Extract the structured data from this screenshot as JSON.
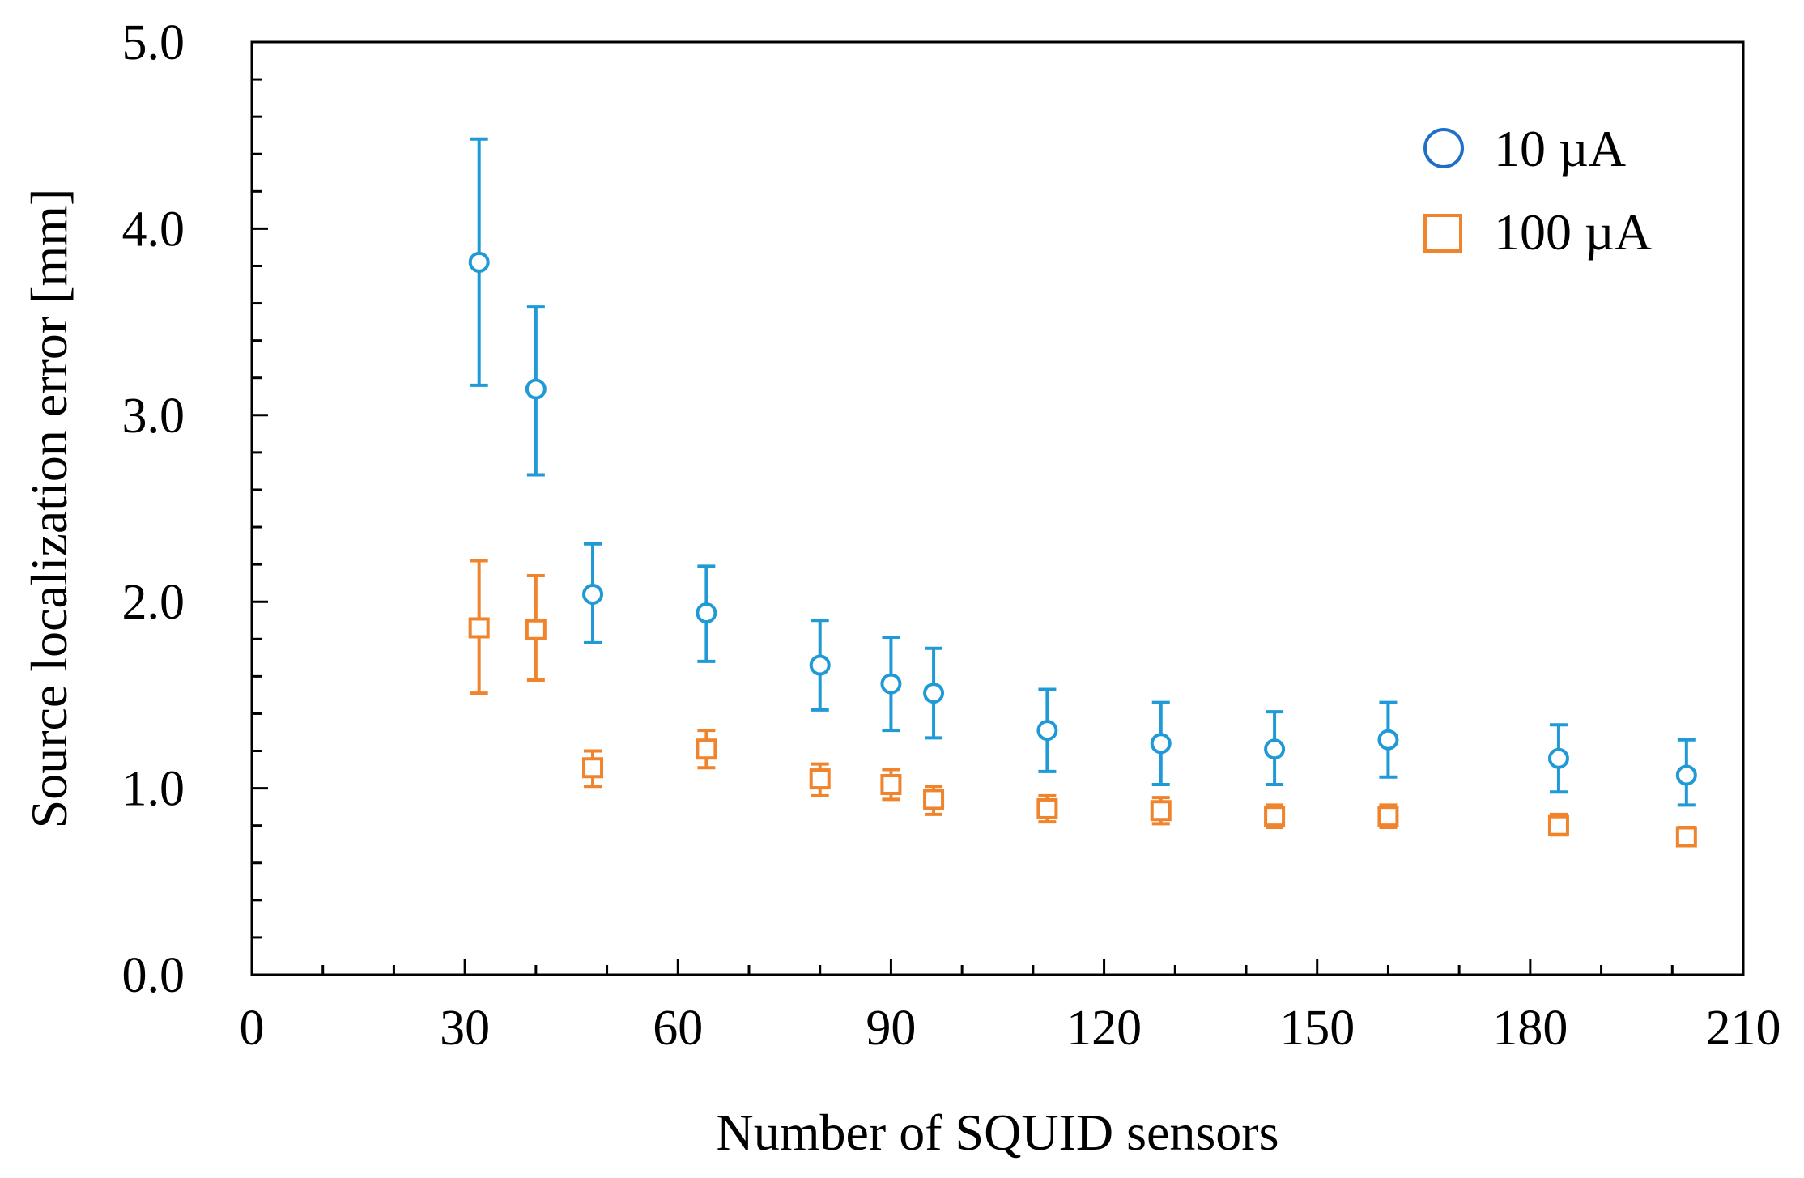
{
  "chart_data": {
    "type": "scatter",
    "title": "",
    "xlabel": "Number of SQUID sensors",
    "ylabel": "Source localization error [mm]",
    "xlim": [
      0,
      210
    ],
    "ylim": [
      0.0,
      5.0
    ],
    "x_ticks": [
      "0",
      "30",
      "60",
      "90",
      "120",
      "150",
      "180",
      "210"
    ],
    "y_ticks": [
      "0.0",
      "1.0",
      "2.0",
      "3.0",
      "4.0",
      "5.0"
    ],
    "legend_position": "top-right",
    "series": [
      {
        "name": "10 µA",
        "marker": "circle",
        "color": "#1f9ad6",
        "legend_color": "#1f6fc7",
        "points": [
          {
            "x": 32,
            "y": 3.82,
            "err_low": 3.16,
            "err_high": 4.48
          },
          {
            "x": 40,
            "y": 3.14,
            "err_low": 2.68,
            "err_high": 3.58
          },
          {
            "x": 48,
            "y": 2.04,
            "err_low": 1.78,
            "err_high": 2.31
          },
          {
            "x": 64,
            "y": 1.94,
            "err_low": 1.68,
            "err_high": 2.19
          },
          {
            "x": 80,
            "y": 1.66,
            "err_low": 1.42,
            "err_high": 1.9
          },
          {
            "x": 90,
            "y": 1.56,
            "err_low": 1.31,
            "err_high": 1.81
          },
          {
            "x": 96,
            "y": 1.51,
            "err_low": 1.27,
            "err_high": 1.75
          },
          {
            "x": 112,
            "y": 1.31,
            "err_low": 1.09,
            "err_high": 1.53
          },
          {
            "x": 128,
            "y": 1.24,
            "err_low": 1.02,
            "err_high": 1.46
          },
          {
            "x": 144,
            "y": 1.21,
            "err_low": 1.02,
            "err_high": 1.41
          },
          {
            "x": 160,
            "y": 1.26,
            "err_low": 1.06,
            "err_high": 1.46
          },
          {
            "x": 184,
            "y": 1.16,
            "err_low": 0.98,
            "err_high": 1.34
          },
          {
            "x": 202,
            "y": 1.07,
            "err_low": 0.91,
            "err_high": 1.26
          }
        ]
      },
      {
        "name": "100 µA",
        "marker": "square",
        "color": "#f0842c",
        "legend_color": "#f0842c",
        "points": [
          {
            "x": 32,
            "y": 1.86,
            "err_low": 1.51,
            "err_high": 2.22
          },
          {
            "x": 40,
            "y": 1.85,
            "err_low": 1.58,
            "err_high": 2.14
          },
          {
            "x": 48,
            "y": 1.11,
            "err_low": 1.01,
            "err_high": 1.2
          },
          {
            "x": 64,
            "y": 1.21,
            "err_low": 1.11,
            "err_high": 1.31
          },
          {
            "x": 80,
            "y": 1.05,
            "err_low": 0.96,
            "err_high": 1.13
          },
          {
            "x": 90,
            "y": 1.02,
            "err_low": 0.94,
            "err_high": 1.1
          },
          {
            "x": 96,
            "y": 0.94,
            "err_low": 0.86,
            "err_high": 1.01
          },
          {
            "x": 112,
            "y": 0.89,
            "err_low": 0.82,
            "err_high": 0.96
          },
          {
            "x": 128,
            "y": 0.88,
            "err_low": 0.81,
            "err_high": 0.95
          },
          {
            "x": 144,
            "y": 0.85,
            "err_low": 0.79,
            "err_high": 0.91
          },
          {
            "x": 160,
            "y": 0.85,
            "err_low": 0.79,
            "err_high": 0.91
          },
          {
            "x": 184,
            "y": 0.8,
            "err_low": 0.75,
            "err_high": 0.86
          },
          {
            "x": 202,
            "y": 0.74,
            "err_low": 0.7,
            "err_high": 0.79
          }
        ]
      }
    ]
  }
}
